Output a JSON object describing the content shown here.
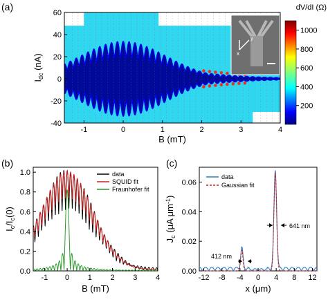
{
  "panels": {
    "a": "(a)",
    "b": "(b)",
    "c": "(c)"
  },
  "chart_data": [
    {
      "panel": "(a)",
      "type": "heatmap",
      "xlabel": "B (mT)",
      "ylabel_main": "I",
      "ylabel_sub": "dc",
      "ylabel_unit": " (nA)",
      "xlim": [
        -1.5,
        4
      ],
      "ylim": [
        -40,
        60
      ],
      "xticks": [
        -1,
        0,
        1,
        2,
        3,
        4
      ],
      "yticks": [
        -40,
        -20,
        0,
        20,
        40,
        60
      ],
      "colorbar_title": "dV/dI (Ω)",
      "colorbar_ticks": [
        200,
        400,
        600,
        800,
        1000
      ],
      "colorbar_range": [
        0,
        1100
      ],
      "inset_labels": {
        "x": "x",
        "y": "y"
      },
      "envelope_peak_nA": 34,
      "oscillation_period_mT": 0.15
    },
    {
      "panel": "(b)",
      "type": "line",
      "xlabel": "B (mT)",
      "ylabel_main": "I",
      "ylabel_sub1": "c",
      "ylabel_mid": "/I",
      "ylabel_sub2": "c",
      "ylabel_tail": "(0)",
      "xlim": [
        -1.5,
        4
      ],
      "ylim": [
        0,
        1.05
      ],
      "xticks": [
        -1,
        0,
        1,
        2,
        3,
        4
      ],
      "yticks": [
        "0.0",
        "0.2",
        "0.4",
        "0.6",
        "0.8",
        "1.0"
      ],
      "series": [
        {
          "name": "data",
          "color": "#000000"
        },
        {
          "name": "SQUID fit",
          "color": "#d42020"
        },
        {
          "name": "Fraunhofer fit",
          "color": "#2a9a2a"
        }
      ],
      "envelope_peak": 1.0,
      "envelope_sigma_mT": 1.15,
      "oscillation_period_mT": 0.15
    },
    {
      "panel": "(c)",
      "type": "line",
      "xlabel": "x (μm)",
      "ylabel_main": "J",
      "ylabel_sub": "c",
      "ylabel_unit": " (μA μm",
      "ylabel_sup": "-1",
      "ylabel_close": ")",
      "xlim": [
        -13,
        13
      ],
      "ylim": [
        0,
        0.07
      ],
      "xticks": [
        -12,
        -8,
        -4,
        0,
        4,
        8,
        12
      ],
      "yticks": [
        "0.00",
        "0.02",
        "0.04",
        "0.06"
      ],
      "series": [
        {
          "name": "data",
          "color": "#2e7bbf"
        },
        {
          "name": "Gaussian fit",
          "color": "#d42020"
        }
      ],
      "peaks": [
        {
          "x": -3.6,
          "height": 0.014,
          "fwhm_label": "412 nm"
        },
        {
          "x": 3.8,
          "height": 0.066,
          "fwhm_label": "641 nm"
        }
      ]
    }
  ]
}
